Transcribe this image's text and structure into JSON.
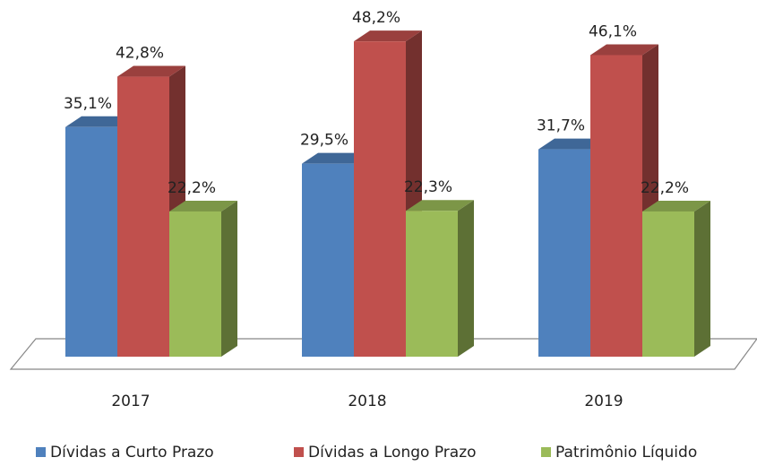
{
  "chart_data": {
    "type": "bar3d",
    "categories": [
      "2017",
      "2018",
      "2019"
    ],
    "series": [
      {
        "name": "Dívidas a Curto Prazo",
        "color": "#4f81bd",
        "values": [
          35.1,
          29.5,
          31.7
        ],
        "value_labels": [
          "35,1%",
          "29,5%",
          "31,7%"
        ]
      },
      {
        "name": "Dívidas a Longo Prazo",
        "color": "#c0504d",
        "values": [
          42.8,
          48.2,
          46.1
        ],
        "value_labels": [
          "42,8%",
          "48,2%",
          "46,1%"
        ]
      },
      {
        "name": "Patrimônio Líquido",
        "color": "#9bbb59",
        "values": [
          22.2,
          22.3,
          22.2
        ],
        "value_labels": [
          "22,2%",
          "22,3%",
          "22,2%"
        ]
      }
    ],
    "legend": "bottom"
  }
}
